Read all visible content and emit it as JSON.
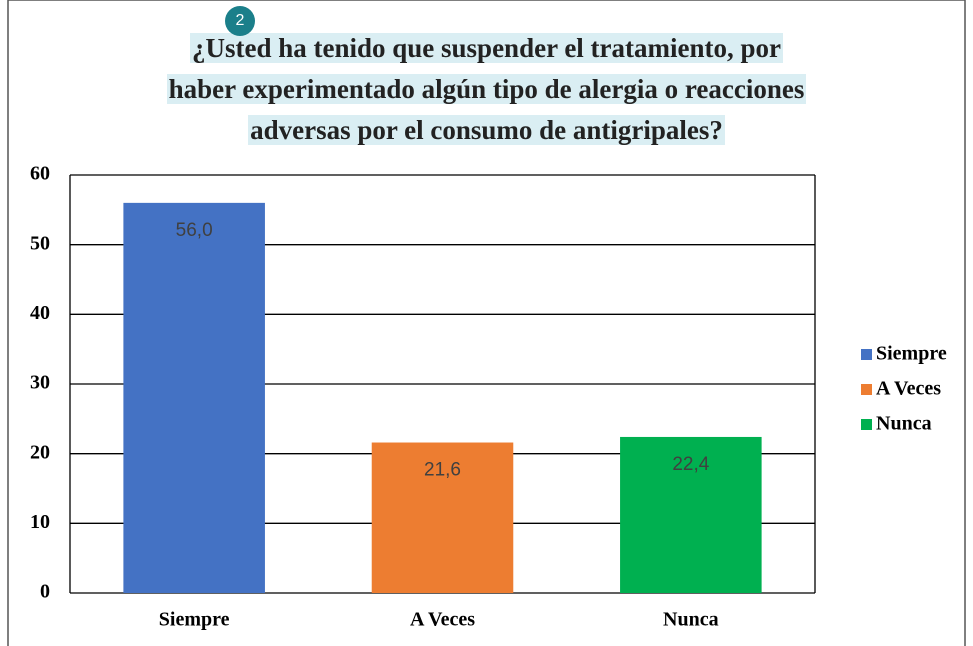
{
  "chart_data": {
    "type": "bar",
    "title": [
      "¿Usted ha tenido que suspender el tratamiento, por",
      "haber experimentado algún tipo de alergia o reacciones",
      "adversas por el consumo de antigripales?"
    ],
    "badge": "2",
    "categories": [
      "Siempre",
      "A Veces",
      "Nunca"
    ],
    "values": [
      56.0,
      21.6,
      22.4
    ],
    "value_labels": [
      "56,0",
      "21,6",
      "22,4"
    ],
    "colors": [
      "#4472c4",
      "#ed7d31",
      "#00b050"
    ],
    "ylim": [
      0,
      60
    ],
    "yticks": [
      0,
      10,
      20,
      30,
      40,
      50,
      60
    ],
    "grid": true,
    "legend": "right"
  }
}
